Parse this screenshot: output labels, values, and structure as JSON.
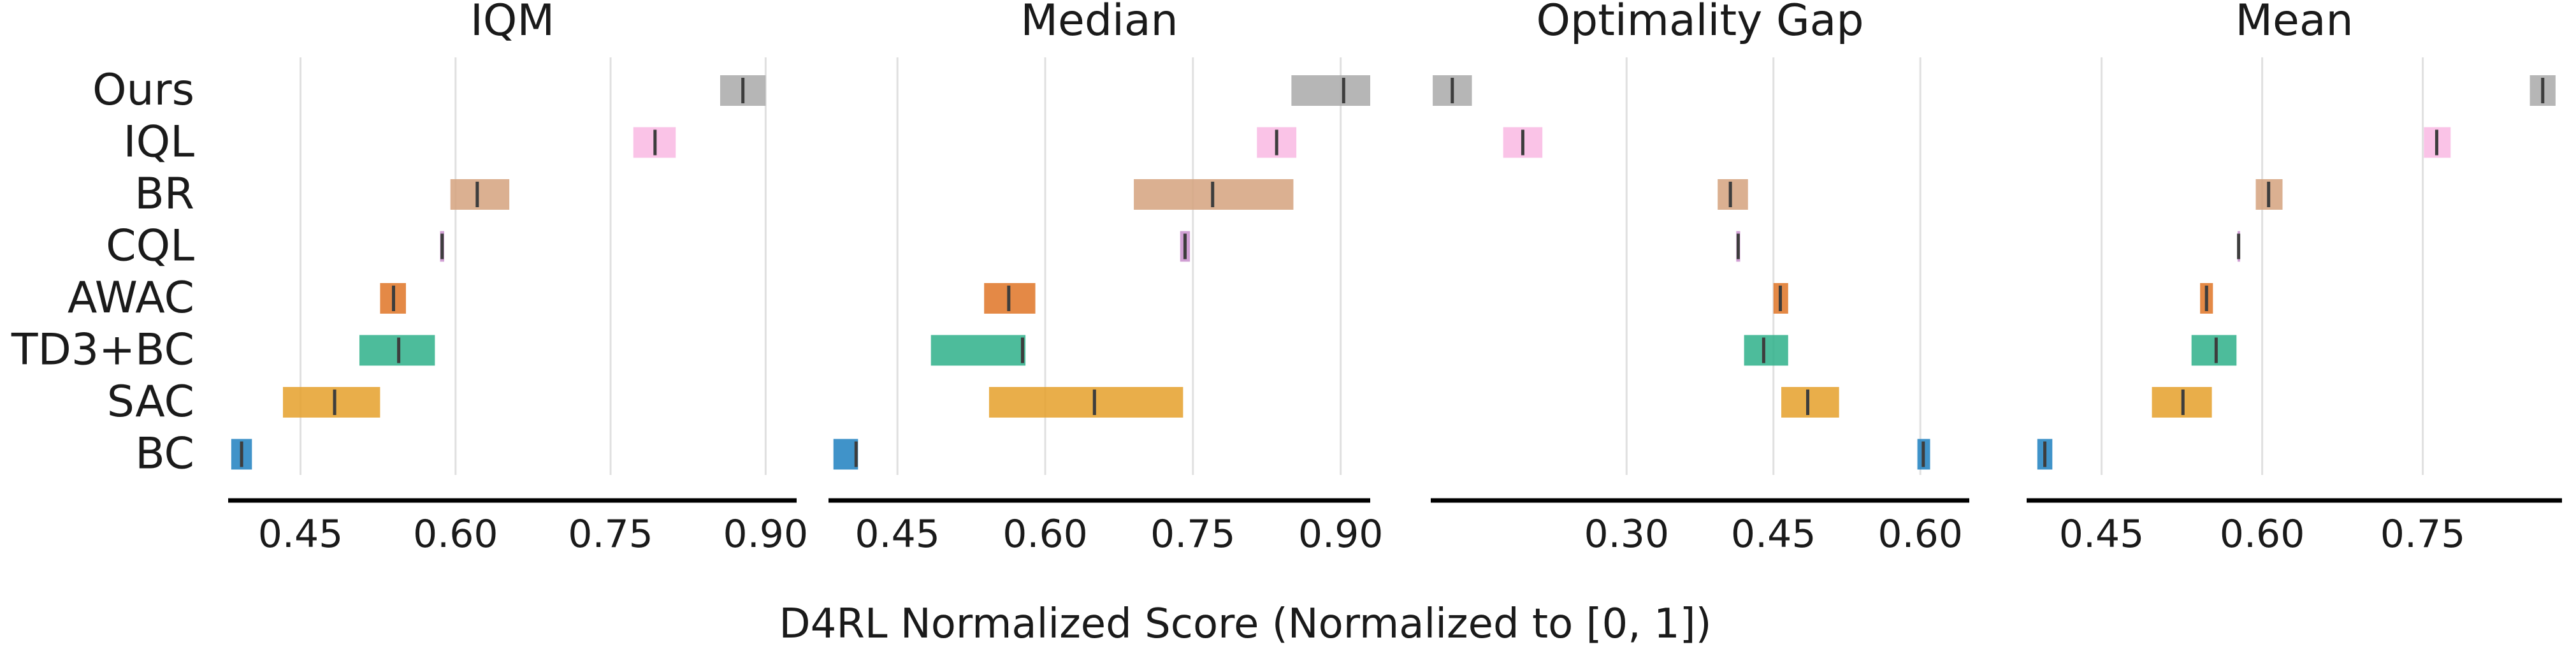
{
  "figure": {
    "xlabel": "D4RL Normalized Score (Normalized to [0, 1])"
  },
  "methods": [
    "Ours",
    "IQL",
    "BR",
    "CQL",
    "AWAC",
    "TD3+BC",
    "SAC",
    "BC"
  ],
  "colors": {
    "Ours": "#a9a9a9",
    "IQL": "#f9b8e3",
    "BR": "#d5a27e",
    "CQL": "#c98fcc",
    "AWAC": "#df7426",
    "TD3+BC": "#2eb08a",
    "SAC": "#e5a02a",
    "BC": "#1f80bf",
    "gridline": "#e0e0e0",
    "axis": "#000000",
    "median_mark": "#3d3d3d"
  },
  "chart_data": [
    {
      "type": "interval",
      "title": "IQM",
      "xlim": [
        0.38,
        0.93
      ],
      "ticks": [
        0.45,
        0.6,
        0.75,
        0.9
      ],
      "tick_labels": [
        "0.45",
        "0.60",
        "0.75",
        "0.90"
      ],
      "intervals": [
        {
          "method": "Ours",
          "low": 0.856,
          "high": 0.9,
          "point": 0.878
        },
        {
          "method": "IQL",
          "low": 0.772,
          "high": 0.813,
          "point": 0.793
        },
        {
          "method": "BR",
          "low": 0.595,
          "high": 0.652,
          "point": 0.621
        },
        {
          "method": "CQL",
          "low": 0.585,
          "high": 0.589,
          "point": 0.587
        },
        {
          "method": "AWAC",
          "low": 0.527,
          "high": 0.552,
          "point": 0.54
        },
        {
          "method": "TD3+BC",
          "low": 0.507,
          "high": 0.58,
          "point": 0.545
        },
        {
          "method": "SAC",
          "low": 0.433,
          "high": 0.527,
          "point": 0.483
        },
        {
          "method": "BC",
          "low": 0.383,
          "high": 0.403,
          "point": 0.393
        }
      ]
    },
    {
      "type": "interval",
      "title": "Median",
      "xlim": [
        0.38,
        0.93
      ],
      "ticks": [
        0.45,
        0.6,
        0.75,
        0.9
      ],
      "tick_labels": [
        "0.45",
        "0.60",
        "0.75",
        "0.90"
      ],
      "intervals": [
        {
          "method": "Ours",
          "low": 0.85,
          "high": 0.93,
          "point": 0.903
        },
        {
          "method": "IQL",
          "low": 0.815,
          "high": 0.855,
          "point": 0.835
        },
        {
          "method": "BR",
          "low": 0.69,
          "high": 0.852,
          "point": 0.77
        },
        {
          "method": "CQL",
          "low": 0.737,
          "high": 0.747,
          "point": 0.742
        },
        {
          "method": "AWAC",
          "low": 0.538,
          "high": 0.59,
          "point": 0.563
        },
        {
          "method": "TD3+BC",
          "low": 0.484,
          "high": 0.58,
          "point": 0.577
        },
        {
          "method": "SAC",
          "low": 0.543,
          "high": 0.74,
          "point": 0.65
        },
        {
          "method": "BC",
          "low": 0.385,
          "high": 0.41,
          "point": 0.408
        }
      ]
    },
    {
      "type": "interval",
      "title": "Optimality Gap",
      "xlim": [
        0.1,
        0.65
      ],
      "ticks": [
        0.3,
        0.45,
        0.6
      ],
      "tick_labels": [
        "0.30",
        "0.45",
        "0.60"
      ],
      "intervals": [
        {
          "method": "Ours",
          "low": 0.102,
          "high": 0.142,
          "point": 0.122
        },
        {
          "method": "IQL",
          "low": 0.174,
          "high": 0.214,
          "point": 0.194
        },
        {
          "method": "BR",
          "low": 0.393,
          "high": 0.424,
          "point": 0.406
        },
        {
          "method": "CQL",
          "low": 0.412,
          "high": 0.416,
          "point": 0.414
        },
        {
          "method": "AWAC",
          "low": 0.45,
          "high": 0.465,
          "point": 0.457
        },
        {
          "method": "TD3+BC",
          "low": 0.42,
          "high": 0.465,
          "point": 0.44
        },
        {
          "method": "SAC",
          "low": 0.458,
          "high": 0.517,
          "point": 0.485
        },
        {
          "method": "BC",
          "low": 0.597,
          "high": 0.61,
          "point": 0.603
        }
      ]
    },
    {
      "type": "interval",
      "title": "Mean",
      "xlim": [
        0.38,
        0.88
      ],
      "ticks": [
        0.45,
        0.6,
        0.75
      ],
      "tick_labels": [
        "0.45",
        "0.60",
        "0.75"
      ],
      "intervals": [
        {
          "method": "Ours",
          "low": 0.85,
          "high": 0.874,
          "point": 0.862
        },
        {
          "method": "IQL",
          "low": 0.751,
          "high": 0.776,
          "point": 0.763
        },
        {
          "method": "BR",
          "low": 0.594,
          "high": 0.619,
          "point": 0.606
        },
        {
          "method": "CQL",
          "low": 0.577,
          "high": 0.579,
          "point": 0.578
        },
        {
          "method": "AWAC",
          "low": 0.542,
          "high": 0.554,
          "point": 0.548
        },
        {
          "method": "TD3+BC",
          "low": 0.534,
          "high": 0.576,
          "point": 0.557
        },
        {
          "method": "SAC",
          "low": 0.497,
          "high": 0.553,
          "point": 0.526
        },
        {
          "method": "BC",
          "low": 0.39,
          "high": 0.404,
          "point": 0.397
        }
      ]
    }
  ]
}
